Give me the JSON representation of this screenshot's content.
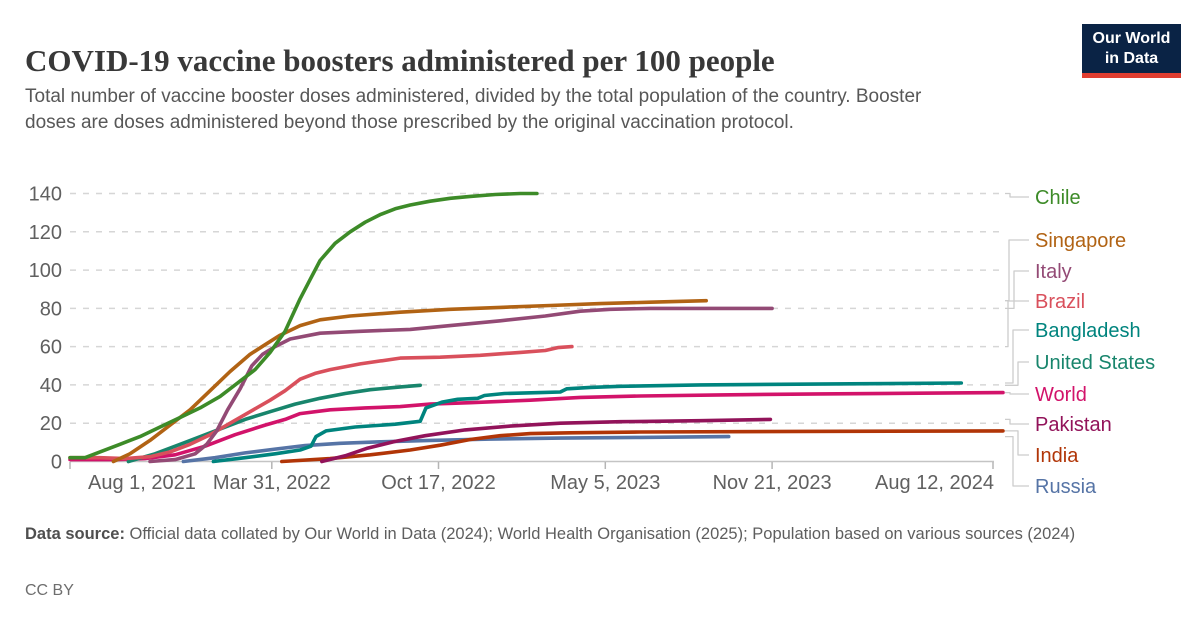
{
  "header": {
    "title": "COVID-19 vaccine boosters administered per 100 people",
    "subtitle": "Total number of vaccine booster doses administered, divided by the total population of the country. Booster doses are doses administered beyond those prescribed by the original vaccination protocol.",
    "logo": {
      "line1": "Our World",
      "line2": "in Data",
      "navy": "#0A2345",
      "red": "#E03D30"
    }
  },
  "footer": {
    "source_label": "Data source:",
    "source_text": " Official data collated by Our World in Data (2024); World Health Organisation (2025); Population based on various sources (2024)",
    "license": "CC BY"
  },
  "chart_data": {
    "type": "line",
    "title": "COVID-19 vaccine boosters administered per 100 people",
    "xlabel": "",
    "ylabel": "",
    "x_unit": "days since Aug 1, 2021",
    "x_axis": {
      "tick_labels": [
        "Aug 1, 2021",
        "Mar 31, 2022",
        "Oct 17, 2022",
        "May 5, 2023",
        "Nov 21, 2023",
        "Aug 12, 2024"
      ],
      "tick_days": [
        0,
        242,
        442,
        642,
        842,
        1107
      ]
    },
    "y_axis": {
      "tick_labels": [
        "0",
        "20",
        "40",
        "60",
        "80",
        "100",
        "120",
        "140"
      ],
      "ticks": [
        0,
        20,
        40,
        60,
        80,
        100,
        120,
        140
      ],
      "range": [
        0,
        140
      ],
      "grid": "dashed"
    },
    "legend_position": "right",
    "series": [
      {
        "id": "chile",
        "name": "Chile",
        "color": "#3D8B28",
        "points": [
          [
            0,
            2
          ],
          [
            18,
            2
          ],
          [
            36,
            5
          ],
          [
            60,
            9
          ],
          [
            84,
            13
          ],
          [
            108,
            18
          ],
          [
            132,
            23
          ],
          [
            156,
            28
          ],
          [
            180,
            34
          ],
          [
            204,
            42
          ],
          [
            222,
            48
          ],
          [
            240,
            57
          ],
          [
            258,
            68
          ],
          [
            276,
            85
          ],
          [
            288,
            95
          ],
          [
            300,
            105
          ],
          [
            318,
            114
          ],
          [
            336,
            120
          ],
          [
            354,
            125
          ],
          [
            372,
            129
          ],
          [
            390,
            132
          ],
          [
            408,
            134
          ],
          [
            432,
            136
          ],
          [
            456,
            137.5
          ],
          [
            480,
            138.5
          ],
          [
            510,
            139.5
          ],
          [
            540,
            140
          ],
          [
            560,
            140
          ]
        ]
      },
      {
        "id": "singapore",
        "name": "Singapore",
        "color": "#B16314",
        "points": [
          [
            52,
            0
          ],
          [
            72,
            4
          ],
          [
            96,
            11
          ],
          [
            120,
            19
          ],
          [
            144,
            27
          ],
          [
            168,
            37
          ],
          [
            192,
            47
          ],
          [
            216,
            56
          ],
          [
            234,
            61
          ],
          [
            252,
            66
          ],
          [
            276,
            71
          ],
          [
            300,
            74
          ],
          [
            336,
            76
          ],
          [
            396,
            78
          ],
          [
            456,
            79.5
          ],
          [
            516,
            80.5
          ],
          [
            576,
            81.5
          ],
          [
            636,
            82.5
          ],
          [
            696,
            83.2
          ],
          [
            763,
            84
          ]
        ]
      },
      {
        "id": "italy",
        "name": "Italy",
        "color": "#934A75",
        "points": [
          [
            96,
            0
          ],
          [
            126,
            1
          ],
          [
            150,
            4
          ],
          [
            164,
            9
          ],
          [
            176,
            16
          ],
          [
            189,
            27
          ],
          [
            204,
            38
          ],
          [
            218,
            50
          ],
          [
            231,
            56
          ],
          [
            246,
            60
          ],
          [
            264,
            64
          ],
          [
            300,
            67
          ],
          [
            348,
            68
          ],
          [
            408,
            69
          ],
          [
            456,
            71
          ],
          [
            516,
            73.5
          ],
          [
            570,
            76
          ],
          [
            612,
            78.5
          ],
          [
            648,
            79.5
          ],
          [
            696,
            80
          ],
          [
            842,
            80
          ]
        ]
      },
      {
        "id": "brazil",
        "name": "Brazil",
        "color": "#D9505C",
        "points": [
          [
            0,
            2
          ],
          [
            36,
            2
          ],
          [
            66,
            1.5
          ],
          [
            96,
            2.5
          ],
          [
            120,
            5
          ],
          [
            144,
            9
          ],
          [
            168,
            14
          ],
          [
            192,
            20
          ],
          [
            216,
            26
          ],
          [
            240,
            32
          ],
          [
            258,
            37
          ],
          [
            276,
            43
          ],
          [
            294,
            46
          ],
          [
            312,
            48
          ],
          [
            348,
            51
          ],
          [
            396,
            54
          ],
          [
            444,
            54.5
          ],
          [
            492,
            55.5
          ],
          [
            540,
            57
          ],
          [
            570,
            58
          ],
          [
            585,
            59.5
          ],
          [
            602,
            60
          ]
        ]
      },
      {
        "id": "bangladesh",
        "name": "Bangladesh",
        "color": "#00847E",
        "points": [
          [
            172,
            0
          ],
          [
            210,
            2
          ],
          [
            246,
            4
          ],
          [
            276,
            6
          ],
          [
            289,
            8
          ],
          [
            295,
            13
          ],
          [
            307,
            16
          ],
          [
            342,
            18
          ],
          [
            390,
            19.5
          ],
          [
            420,
            21
          ],
          [
            427,
            28
          ],
          [
            446,
            31
          ],
          [
            465,
            32.5
          ],
          [
            489,
            33
          ],
          [
            497,
            34.5
          ],
          [
            521,
            35.5
          ],
          [
            564,
            36
          ],
          [
            588,
            36.3
          ],
          [
            596,
            38
          ],
          [
            624,
            38.7
          ],
          [
            660,
            39.3
          ],
          [
            756,
            40
          ],
          [
            936,
            40.6
          ],
          [
            1069,
            41
          ]
        ]
      },
      {
        "id": "united-states",
        "name": "United States",
        "color": "#18856C",
        "points": [
          [
            70,
            0
          ],
          [
            102,
            4
          ],
          [
            138,
            10
          ],
          [
            174,
            16
          ],
          [
            210,
            22
          ],
          [
            240,
            26
          ],
          [
            270,
            30
          ],
          [
            300,
            33
          ],
          [
            330,
            35.5
          ],
          [
            360,
            37.5
          ],
          [
            398,
            39
          ],
          [
            420,
            39.8
          ]
        ]
      },
      {
        "id": "world",
        "name": "World",
        "color": "#D2136A",
        "points": [
          [
            0,
            1
          ],
          [
            54,
            1
          ],
          [
            90,
            1.5
          ],
          [
            126,
            3.5
          ],
          [
            162,
            8
          ],
          [
            198,
            14
          ],
          [
            234,
            19
          ],
          [
            258,
            22
          ],
          [
            276,
            25
          ],
          [
            312,
            27
          ],
          [
            354,
            28
          ],
          [
            396,
            28.7
          ],
          [
            432,
            30
          ],
          [
            480,
            30.7
          ],
          [
            552,
            32
          ],
          [
            612,
            33.5
          ],
          [
            684,
            34.2
          ],
          [
            780,
            34.8
          ],
          [
            900,
            35.3
          ],
          [
            1019,
            35.7
          ],
          [
            1119,
            36
          ]
        ]
      },
      {
        "id": "pakistan",
        "name": "Pakistan",
        "color": "#92135A",
        "points": [
          [
            302,
            0
          ],
          [
            330,
            3
          ],
          [
            357,
            7
          ],
          [
            390,
            10.5
          ],
          [
            426,
            13.5
          ],
          [
            474,
            16.5
          ],
          [
            528,
            18.5
          ],
          [
            588,
            20
          ],
          [
            660,
            20.8
          ],
          [
            756,
            21.3
          ],
          [
            840,
            22
          ]
        ]
      },
      {
        "id": "india",
        "name": "India",
        "color": "#B13507",
        "points": [
          [
            254,
            0
          ],
          [
            312,
            1.5
          ],
          [
            360,
            3.5
          ],
          [
            408,
            6
          ],
          [
            444,
            8.5
          ],
          [
            480,
            11.5
          ],
          [
            516,
            13.5
          ],
          [
            552,
            14.6
          ],
          [
            600,
            15
          ],
          [
            684,
            15.4
          ],
          [
            876,
            15.7
          ],
          [
            1119,
            16
          ]
        ]
      },
      {
        "id": "russia",
        "name": "Russia",
        "color": "#5674A6",
        "points": [
          [
            136,
            0
          ],
          [
            174,
            2
          ],
          [
            210,
            4.5
          ],
          [
            246,
            6.5
          ],
          [
            282,
            8.3
          ],
          [
            324,
            9.5
          ],
          [
            372,
            10.3
          ],
          [
            432,
            11
          ],
          [
            504,
            11.7
          ],
          [
            588,
            12.2
          ],
          [
            684,
            12.6
          ],
          [
            790,
            13
          ]
        ]
      }
    ]
  }
}
